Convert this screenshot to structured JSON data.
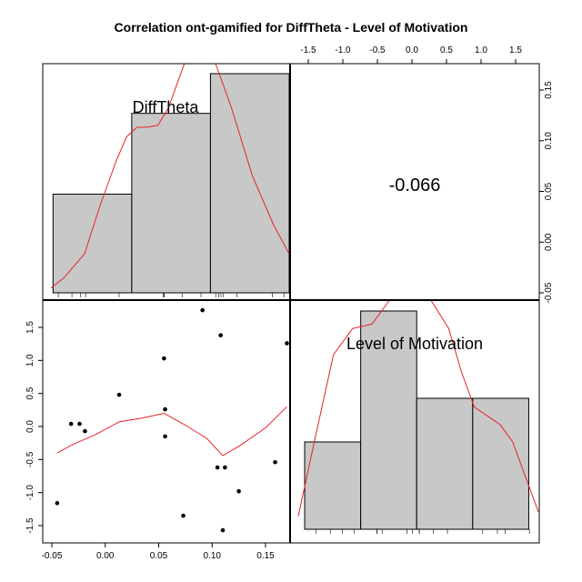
{
  "chart_data": {
    "type": "pairs",
    "title": "Correlation ont-gamified for DiffTheta - Level of Motivation",
    "variables": [
      "DiffTheta",
      "Level of Motivation"
    ],
    "correlation": "-0.066",
    "diff_theta": {
      "hist_breaks": [
        -0.05,
        0.025,
        0.1,
        0.175
      ],
      "hist_heights": [
        0.077,
        0.14,
        0.171
      ],
      "density_ylim": [
        -0.05,
        0.175
      ],
      "x_ticks": [
        "-0.05",
        "0.00",
        "0.05",
        "0.10",
        "0.15"
      ],
      "x_tick_values": [
        -0.05,
        0,
        0.05,
        0.1,
        0.15
      ],
      "right_ticks": [
        "-0.05",
        "0.00",
        "0.05",
        "0.10",
        "0.15"
      ],
      "right_tick_values": [
        -0.05,
        0,
        0.05,
        0.1,
        0.15
      ],
      "rug": [
        -0.045,
        -0.032,
        -0.024,
        -0.019,
        0.013,
        0.055,
        0.056,
        0.056,
        0.073,
        0.091,
        0.105,
        0.108,
        0.11,
        0.112,
        0.125,
        0.159,
        0.17
      ],
      "density": [
        [
          -0.052,
          -0.045
        ],
        [
          -0.04,
          -0.035
        ],
        [
          -0.02,
          -0.01
        ],
        [
          -0.005,
          0.04
        ],
        [
          0.01,
          0.085
        ],
        [
          0.02,
          0.11
        ],
        [
          0.03,
          0.12
        ],
        [
          0.04,
          0.12
        ],
        [
          0.05,
          0.122
        ],
        [
          0.06,
          0.14
        ],
        [
          0.07,
          0.17
        ],
        [
          0.08,
          0.2
        ]
      ]
    },
    "motivation": {
      "hist_breaks": [
        -1.75,
        -0.875,
        0,
        0.875,
        1.75
      ],
      "hist_heights": [
        2,
        5,
        3,
        3
      ],
      "density_ylim": [
        0,
        5.4
      ],
      "top_ticks": [
        "-1.5",
        "-1.0",
        "-0.5",
        "0.0",
        "0.5",
        "1.0",
        "1.5"
      ],
      "top_tick_values": [
        -1.5,
        -1,
        -0.5,
        0,
        0.5,
        1,
        1.5
      ],
      "y_ticks": [
        "-1.5",
        "-1.0",
        "-0.5",
        "0.0",
        "0.5",
        "1.0",
        "1.5"
      ],
      "y_tick_values": [
        -1.5,
        -1,
        -0.5,
        0,
        0.5,
        1,
        1.5
      ],
      "rug": [
        -1.57,
        -1.35,
        -1.16,
        -0.98,
        -0.62,
        -0.62,
        -0.54,
        -0.15,
        -0.07,
        0.04,
        0.04,
        0.26,
        0.48,
        1.03,
        1.26,
        1.38,
        1.76
      ],
      "density": [
        [
          -1.85,
          0.3
        ],
        [
          -1.6,
          2.0
        ],
        [
          -1.3,
          4.0
        ],
        [
          -1.0,
          4.6
        ],
        [
          -0.7,
          4.7
        ],
        [
          -0.4,
          5.3
        ],
        [
          -0.1,
          5.5
        ],
        [
          0.2,
          5.3
        ],
        [
          0.5,
          4.6
        ],
        [
          0.7,
          3.6
        ],
        [
          0.9,
          2.8
        ],
        [
          1.1,
          2.6
        ],
        [
          1.3,
          2.4
        ],
        [
          1.5,
          2.0
        ],
        [
          1.7,
          1.2
        ],
        [
          1.9,
          0.4
        ]
      ]
    },
    "scatter": {
      "x_range": [
        -0.052,
        0.175
      ],
      "y_range": [
        -1.65,
        1.85
      ],
      "points": [
        [
          -0.045,
          -1.16
        ],
        [
          -0.032,
          0.04
        ],
        [
          -0.024,
          0.04
        ],
        [
          -0.019,
          -0.07
        ],
        [
          0.013,
          0.48
        ],
        [
          0.055,
          1.03
        ],
        [
          0.056,
          0.26
        ],
        [
          0.056,
          -0.15
        ],
        [
          0.073,
          -1.35
        ],
        [
          0.091,
          1.76
        ],
        [
          0.105,
          -0.62
        ],
        [
          0.108,
          1.38
        ],
        [
          0.11,
          -1.57
        ],
        [
          0.112,
          -0.62
        ],
        [
          0.125,
          -0.98
        ],
        [
          0.159,
          -0.54
        ],
        [
          0.17,
          1.26
        ]
      ],
      "smooth": [
        [
          -0.045,
          -0.4
        ],
        [
          -0.03,
          -0.27
        ],
        [
          -0.01,
          -0.13
        ],
        [
          0.013,
          0.07
        ],
        [
          0.035,
          0.13
        ],
        [
          0.055,
          0.2
        ],
        [
          0.075,
          0.02
        ],
        [
          0.095,
          -0.18
        ],
        [
          0.11,
          -0.44
        ],
        [
          0.125,
          -0.3
        ],
        [
          0.15,
          -0.02
        ],
        [
          0.17,
          0.3
        ]
      ]
    }
  }
}
